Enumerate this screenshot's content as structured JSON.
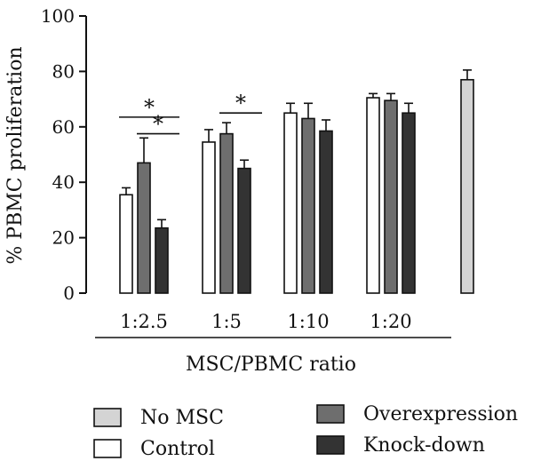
{
  "chart_data": {
    "type": "bar",
    "ylabel": "% PBMC proliferation",
    "xlabel": "MSC/PBMC ratio",
    "ylim": [
      0,
      100
    ],
    "yticks": [
      0,
      20,
      40,
      60,
      80,
      100
    ],
    "categories": [
      "1:2.5",
      "1:5",
      "1:10",
      "1:20"
    ],
    "series": [
      {
        "name": "Control",
        "color": "#ffffff",
        "values": [
          35.5,
          54.5,
          65,
          70.5
        ],
        "errors": [
          2.5,
          4.5,
          3.5,
          1.5
        ]
      },
      {
        "name": "Overexpression",
        "color": "#6e6e6e",
        "values": [
          47,
          57.5,
          63,
          69.5
        ],
        "errors": [
          9,
          4,
          5.5,
          2.5
        ]
      },
      {
        "name": "Knock-down",
        "color": "#333333",
        "values": [
          23.5,
          45,
          58.5,
          65
        ],
        "errors": [
          3,
          3,
          4,
          3.5
        ]
      }
    ],
    "extra_bar": {
      "name": "No MSC",
      "color": "#d4d4d4",
      "value": 77,
      "error": 3.5
    },
    "significance": [
      {
        "label": "*",
        "category": "1:2.5",
        "from": "Control",
        "to": "Knock-down",
        "y": 63.5
      },
      {
        "label": "*",
        "category": "1:2.5",
        "from": "Overexpression",
        "to": "Knock-down",
        "y": 57.5
      },
      {
        "label": "*",
        "category": "1:5",
        "from": "Overexpression",
        "to": "Knock-down",
        "y": 65
      }
    ],
    "legend": [
      {
        "name": "No MSC",
        "color": "#d4d4d4"
      },
      {
        "name": "Overexpression",
        "color": "#6e6e6e"
      },
      {
        "name": "Control",
        "color": "#ffffff"
      },
      {
        "name": "Knock-down",
        "color": "#333333"
      }
    ],
    "legend_position": "bottom",
    "grid": false
  }
}
